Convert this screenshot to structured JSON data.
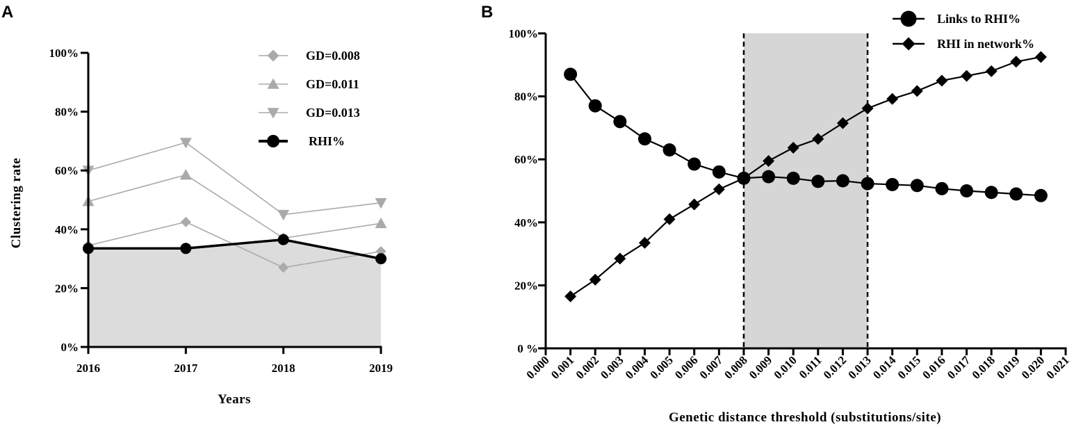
{
  "chart_data": [
    {
      "panel": "A",
      "type": "line",
      "title": "",
      "xlabel": "Years",
      "ylabel": "Clustering rate",
      "categories": [
        "2016",
        "2017",
        "2018",
        "2019"
      ],
      "ylim": [
        0,
        100
      ],
      "yticks": [
        "0%",
        "20%",
        "40%",
        "60%",
        "80%",
        "100%"
      ],
      "legend_position": "top-right",
      "series": [
        {
          "name": "GD=0.008",
          "marker": "diamond",
          "color": "#aaaaaa",
          "values": [
            34.5,
            42.5,
            27,
            32.5
          ]
        },
        {
          "name": "GD=0.011",
          "marker": "triangle-up",
          "color": "#aaaaaa",
          "values": [
            49.5,
            58.5,
            37,
            42
          ]
        },
        {
          "name": "GD=0.013",
          "marker": "triangle-down",
          "color": "#aaaaaa",
          "values": [
            60,
            69.5,
            45,
            49
          ]
        },
        {
          "name": "RHI%",
          "marker": "circle",
          "color": "#000000",
          "filled_area": true,
          "values": [
            33.5,
            33.5,
            36.5,
            30
          ]
        }
      ]
    },
    {
      "panel": "B",
      "type": "line",
      "title": "",
      "xlabel": "Genetic distance threshold (substitutions/site)",
      "ylabel": "",
      "x": [
        0.001,
        0.002,
        0.003,
        0.004,
        0.005,
        0.006,
        0.007,
        0.008,
        0.009,
        0.01,
        0.011,
        0.012,
        0.013,
        0.014,
        0.015,
        0.016,
        0.017,
        0.018,
        0.019,
        0.02
      ],
      "xticks": [
        "0.000",
        "0.001",
        "0.002",
        "0.003",
        "0.004",
        "0.005",
        "0.006",
        "0.007",
        "0.008",
        "0.009",
        "0.010",
        "0.011",
        "0.012",
        "0.013",
        "0.014",
        "0.015",
        "0.016",
        "0.017",
        "0.018",
        "0.019",
        "0.020",
        "0.021"
      ],
      "xlim": [
        0,
        0.021
      ],
      "ylim": [
        0,
        100
      ],
      "yticks": [
        "0 %",
        "20%",
        "40%",
        "60%",
        "80%",
        "100%"
      ],
      "shaded_region": [
        0.008,
        0.013
      ],
      "legend_position": "top-right",
      "series": [
        {
          "name": "Links to RHI%",
          "marker": "circle",
          "color": "#000000",
          "values": [
            87,
            77,
            72,
            66.5,
            63,
            58.5,
            56,
            54,
            54.5,
            54,
            53,
            53.2,
            52.3,
            52,
            51.7,
            50.7,
            50,
            49.5,
            49,
            48.5
          ]
        },
        {
          "name": "RHI in network%",
          "marker": "diamond",
          "color": "#000000",
          "values": [
            16.5,
            21.8,
            28.5,
            33.5,
            41,
            45.7,
            50.5,
            54,
            59.5,
            63.7,
            66.5,
            71.5,
            76.2,
            79.2,
            81.7,
            85,
            86.5,
            88,
            91,
            92.5
          ]
        }
      ]
    }
  ],
  "panel_labels": [
    "A",
    "B"
  ]
}
